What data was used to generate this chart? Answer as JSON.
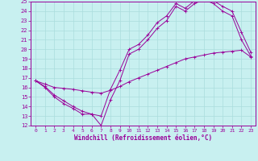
{
  "xlabel": "Windchill (Refroidissement éolien,°C)",
  "ylabel": "",
  "xlim": [
    -0.5,
    23.5
  ],
  "ylim": [
    12,
    25
  ],
  "xticks": [
    0,
    1,
    2,
    3,
    4,
    5,
    6,
    7,
    8,
    9,
    10,
    11,
    12,
    13,
    14,
    15,
    16,
    17,
    18,
    19,
    20,
    21,
    22,
    23
  ],
  "yticks": [
    12,
    13,
    14,
    15,
    16,
    17,
    18,
    19,
    20,
    21,
    22,
    23,
    24,
    25
  ],
  "background_color": "#c8f0f0",
  "line_color": "#990099",
  "grid_color": "#aadddd",
  "line1_x": [
    0,
    1,
    2,
    3,
    4,
    5,
    6,
    7,
    8,
    9,
    10,
    11,
    12,
    13,
    14,
    15,
    16,
    17,
    18,
    19,
    20,
    21,
    22,
    23
  ],
  "line1_y": [
    16.7,
    16.0,
    15.0,
    14.3,
    13.8,
    13.2,
    13.2,
    12.0,
    14.7,
    16.7,
    19.5,
    20.0,
    21.0,
    22.2,
    23.0,
    24.5,
    24.0,
    24.8,
    25.2,
    24.8,
    24.0,
    23.5,
    21.0,
    19.3
  ],
  "line2_x": [
    0,
    1,
    2,
    3,
    4,
    5,
    6,
    7,
    8,
    9,
    10,
    11,
    12,
    13,
    14,
    15,
    16,
    17,
    18,
    19,
    20,
    21,
    22,
    23
  ],
  "line2_y": [
    16.7,
    16.1,
    15.2,
    14.6,
    14.0,
    13.5,
    13.2,
    13.0,
    15.8,
    17.8,
    20.0,
    20.5,
    21.5,
    22.8,
    23.5,
    24.8,
    24.3,
    25.1,
    25.4,
    25.1,
    24.5,
    24.0,
    21.8,
    19.7
  ],
  "line3_x": [
    0,
    1,
    2,
    3,
    4,
    5,
    6,
    7,
    8,
    9,
    10,
    11,
    12,
    13,
    14,
    15,
    16,
    17,
    18,
    19,
    20,
    21,
    22,
    23
  ],
  "line3_y": [
    16.7,
    16.35,
    16.0,
    15.9,
    15.8,
    15.65,
    15.5,
    15.4,
    15.7,
    16.1,
    16.6,
    17.0,
    17.4,
    17.8,
    18.2,
    18.6,
    19.0,
    19.2,
    19.4,
    19.6,
    19.7,
    19.8,
    19.9,
    19.2
  ],
  "marker": "+"
}
